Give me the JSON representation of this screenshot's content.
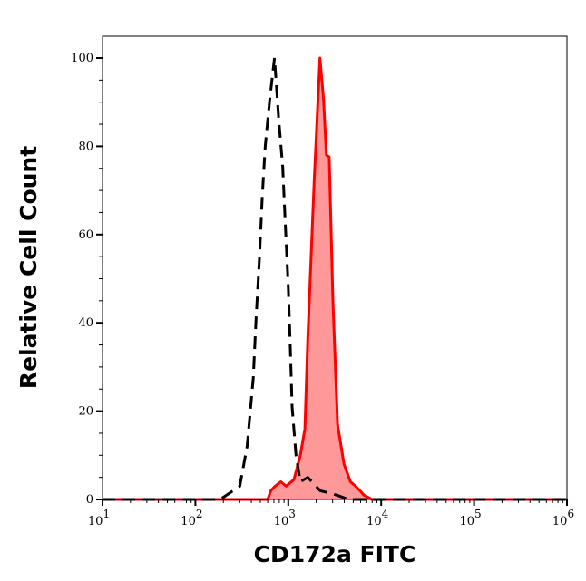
{
  "chart_data": {
    "type": "area",
    "title": "",
    "xlabel": "CD172a FITC",
    "ylabel": "Relative Cell Count",
    "x_scale": "log",
    "xlim": [
      10,
      1000000
    ],
    "ylim": [
      0,
      100
    ],
    "x_ticks": [
      {
        "base": "10",
        "exp": "1",
        "value": 10
      },
      {
        "base": "10",
        "exp": "2",
        "value": 100
      },
      {
        "base": "10",
        "exp": "3",
        "value": 1000
      },
      {
        "base": "10",
        "exp": "4",
        "value": 10000
      },
      {
        "base": "10",
        "exp": "5",
        "value": 100000
      },
      {
        "base": "10",
        "exp": "6",
        "value": 1000000
      }
    ],
    "y_ticks": [
      "0",
      "20",
      "40",
      "60",
      "80",
      "100"
    ],
    "grid": false,
    "series": [
      {
        "style": "dashed-line",
        "color": "#000000",
        "x": [
          10,
          180,
          200,
          300,
          360,
          420,
          450,
          490,
          525,
          565,
          630,
          710,
          790,
          870,
          930,
          1000,
          1050,
          1100,
          1210,
          1350,
          1620,
          2200,
          3300,
          4470,
          1000000
        ],
        "y": [
          0,
          0,
          0.5,
          3,
          12,
          27.5,
          41,
          55,
          68.6,
          80,
          90.5,
          100,
          86,
          75.5,
          62,
          48,
          34.5,
          21,
          10,
          4,
          5,
          2,
          1,
          0,
          0
        ]
      },
      {
        "style": "filled",
        "color": "#ff0000",
        "fill": "#ff9999",
        "x": [
          10,
          600,
          650,
          720,
          832,
          950,
          1150,
          1350,
          1510,
          1620,
          1900,
          2190,
          2400,
          2570,
          2760,
          3020,
          3390,
          3980,
          4670,
          5300,
          5890,
          6500,
          7940,
          1000000
        ],
        "y": [
          0,
          0,
          2,
          3,
          4,
          3,
          4.5,
          10,
          16,
          36.5,
          72,
          100,
          90.5,
          78,
          77.6,
          45,
          17,
          8,
          4,
          3,
          2,
          1,
          0,
          0
        ]
      }
    ]
  }
}
